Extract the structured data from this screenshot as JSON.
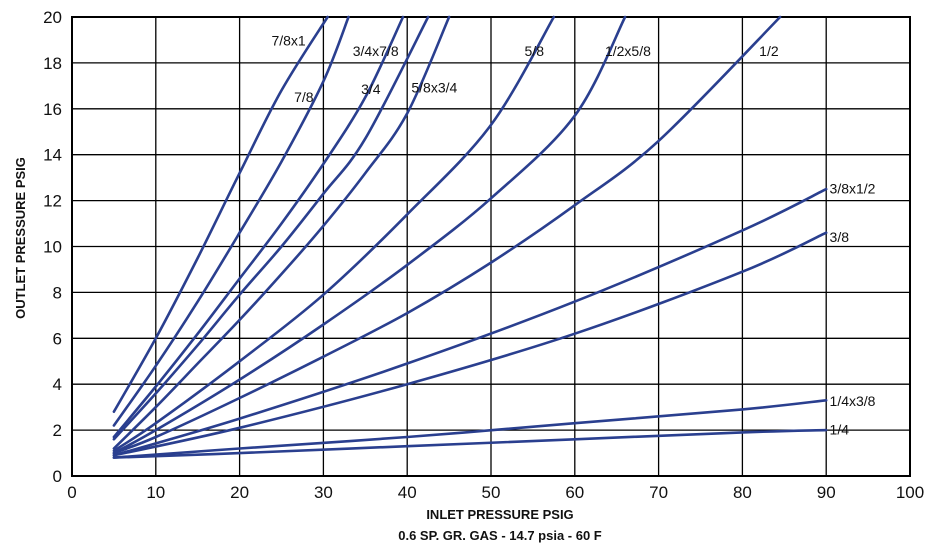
{
  "chart_data": {
    "type": "line",
    "xlabel": "INLET  PRESSURE PSIG",
    "subtitle": "0.6 SP. GR. GAS - 14.7 psia - 60 F",
    "ylabel": "OUTLET PRESSURE PSIG",
    "xlim": [
      0,
      100
    ],
    "ylim": [
      0,
      20
    ],
    "x_ticks": [
      0,
      10,
      20,
      30,
      40,
      50,
      60,
      70,
      80,
      90,
      100
    ],
    "y_ticks": [
      0,
      2,
      4,
      6,
      8,
      10,
      12,
      14,
      16,
      18,
      20
    ],
    "grid": true,
    "line_color": "#2a3f8f",
    "series": [
      {
        "name": "7/8x1",
        "x": [
          5,
          10,
          15,
          20,
          25,
          30.5
        ],
        "y": [
          2.8,
          6.0,
          9.5,
          13.2,
          16.8,
          20
        ]
      },
      {
        "name": "7/8",
        "x": [
          5,
          10,
          15,
          20,
          25,
          30,
          33
        ],
        "y": [
          2.2,
          4.8,
          7.6,
          10.6,
          13.7,
          17.2,
          20
        ]
      },
      {
        "name": "3/4x7/8",
        "x": [
          5,
          10,
          15,
          20,
          25,
          30,
          35,
          39.5
        ],
        "y": [
          1.7,
          3.9,
          6.2,
          8.6,
          11.0,
          13.6,
          16.5,
          20
        ]
      },
      {
        "name": "3/4",
        "x": [
          5,
          10,
          15,
          20,
          25,
          30,
          35,
          42.5
        ],
        "y": [
          1.6,
          3.6,
          5.7,
          7.9,
          10.0,
          12.3,
          14.7,
          20
        ]
      },
      {
        "name": "5/8x3/4",
        "x": [
          5,
          10,
          15,
          20,
          25,
          30,
          35,
          40,
          45
        ],
        "y": [
          1.2,
          3.0,
          4.9,
          6.8,
          8.8,
          10.9,
          13.2,
          15.8,
          20
        ]
      },
      {
        "name": "5/8",
        "x": [
          5,
          10,
          20,
          30,
          40,
          50,
          57.5
        ],
        "y": [
          1.1,
          2.3,
          5.0,
          7.9,
          11.4,
          15.3,
          20
        ]
      },
      {
        "name": "1/2x5/8",
        "x": [
          5,
          10,
          20,
          30,
          40,
          50,
          60,
          66
        ],
        "y": [
          1.0,
          2.0,
          4.2,
          6.6,
          9.2,
          12.1,
          15.7,
          20
        ]
      },
      {
        "name": "1/2",
        "x": [
          5,
          10,
          20,
          30,
          40,
          50,
          60,
          70,
          84.5
        ],
        "y": [
          1.0,
          1.7,
          3.4,
          5.2,
          7.1,
          9.3,
          11.8,
          14.6,
          20
        ]
      },
      {
        "name": "3/8x1/2",
        "x": [
          5,
          20,
          40,
          60,
          80,
          90
        ],
        "y": [
          0.9,
          2.5,
          4.9,
          7.6,
          10.7,
          12.5
        ]
      },
      {
        "name": "3/8",
        "x": [
          5,
          20,
          40,
          60,
          80,
          90
        ],
        "y": [
          0.9,
          2.1,
          4.0,
          6.2,
          8.9,
          10.6
        ]
      },
      {
        "name": "1/4x3/8",
        "x": [
          5,
          20,
          40,
          60,
          80,
          90
        ],
        "y": [
          0.8,
          1.2,
          1.7,
          2.3,
          2.9,
          3.3
        ]
      },
      {
        "name": "1/4",
        "x": [
          5,
          20,
          40,
          60,
          80,
          90
        ],
        "y": [
          0.8,
          1.0,
          1.3,
          1.6,
          1.9,
          2.0
        ]
      }
    ],
    "series_labels": [
      "7/8x1",
      "3/4x7/8",
      "5/8",
      "1/2x5/8",
      "1/2",
      "7/8",
      "3/4",
      "5/8x3/4",
      "3/8x1/2",
      "3/8",
      "1/4x3/8",
      "1/4"
    ]
  }
}
